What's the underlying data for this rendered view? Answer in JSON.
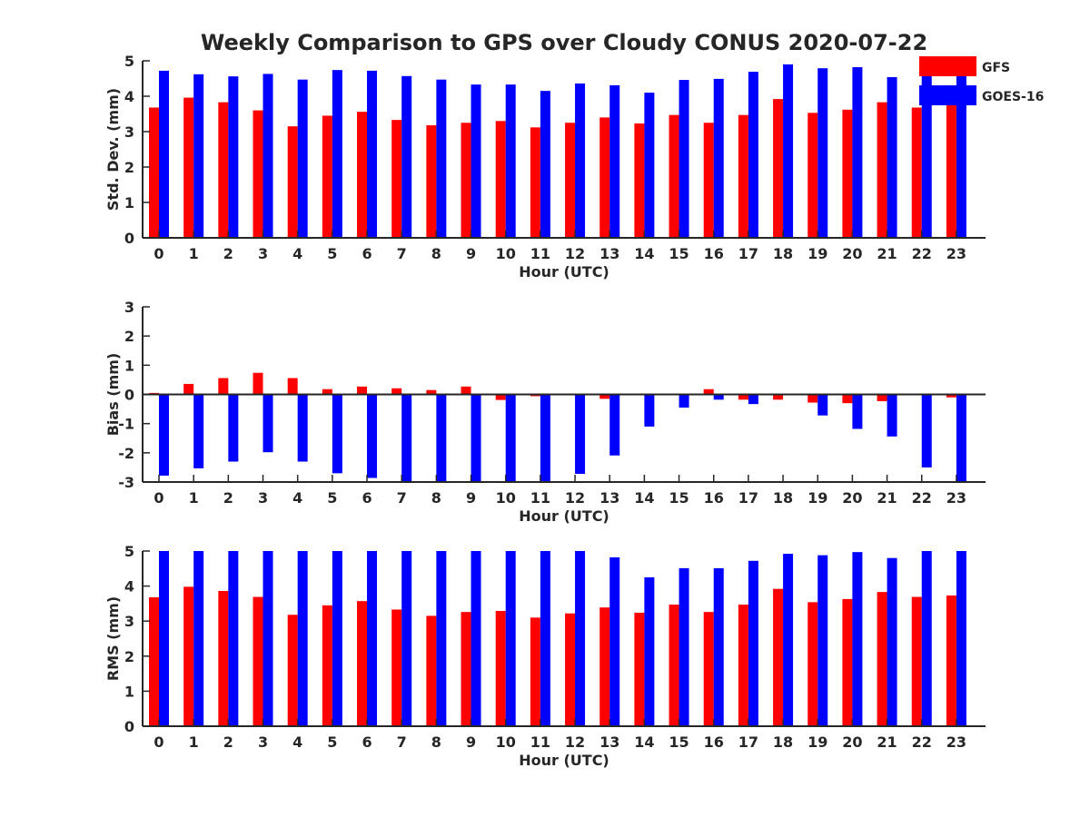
{
  "title": "Weekly Comparison to GPS over Cloudy CONUS 2020-07-22",
  "legend": {
    "placement": "top-right",
    "items": [
      {
        "label": "GFS",
        "color": "#ff0000"
      },
      {
        "label": "GOES-16",
        "color": "#0000ff"
      }
    ]
  },
  "colors": {
    "gfs": "#ff0000",
    "goes": "#0000ff",
    "axis": "#262626"
  },
  "chart_data": [
    {
      "type": "bar",
      "xlabel": "Hour (UTC)",
      "ylabel": "Std. Dev. (mm)",
      "ylim": [
        0,
        5
      ],
      "yticks": [
        0,
        1,
        2,
        3,
        4,
        5
      ],
      "categories": [
        "0",
        "1",
        "2",
        "3",
        "4",
        "5",
        "6",
        "7",
        "8",
        "9",
        "10",
        "11",
        "12",
        "13",
        "14",
        "15",
        "16",
        "17",
        "18",
        "19",
        "20",
        "21",
        "22",
        "23"
      ],
      "series": [
        {
          "name": "GFS",
          "values": [
            3.68,
            3.96,
            3.83,
            3.6,
            3.15,
            3.45,
            3.56,
            3.33,
            3.18,
            3.25,
            3.3,
            3.12,
            3.25,
            3.4,
            3.23,
            3.47,
            3.25,
            3.47,
            3.92,
            3.53,
            3.62,
            3.83,
            3.68,
            3.85
          ]
        },
        {
          "name": "GOES-16",
          "values": [
            4.72,
            4.62,
            4.56,
            4.63,
            4.47,
            4.74,
            4.72,
            4.57,
            4.47,
            4.33,
            4.33,
            4.15,
            4.36,
            4.31,
            4.1,
            4.46,
            4.49,
            4.69,
            4.9,
            4.79,
            4.82,
            4.54,
            4.72,
            4.7
          ]
        }
      ]
    },
    {
      "type": "bar",
      "xlabel": "Hour (UTC)",
      "ylabel": "Bias (mm)",
      "ylim": [
        -3,
        3
      ],
      "yticks": [
        -3,
        -2,
        -1,
        0,
        1,
        2,
        3
      ],
      "zero_line": true,
      "categories": [
        "0",
        "1",
        "2",
        "3",
        "4",
        "5",
        "6",
        "7",
        "8",
        "9",
        "10",
        "11",
        "12",
        "13",
        "14",
        "15",
        "16",
        "17",
        "18",
        "19",
        "20",
        "21",
        "22",
        "23"
      ],
      "series": [
        {
          "name": "GFS",
          "values": [
            0.05,
            0.36,
            0.56,
            0.74,
            0.56,
            0.18,
            0.27,
            0.21,
            0.15,
            0.27,
            -0.19,
            -0.06,
            -0.03,
            -0.15,
            0.0,
            0.0,
            0.18,
            -0.18,
            -0.18,
            -0.28,
            -0.3,
            -0.23,
            0.0,
            -0.1
          ]
        },
        {
          "name": "GOES-16",
          "values": [
            -2.78,
            -2.53,
            -2.3,
            -1.98,
            -2.3,
            -2.7,
            -2.86,
            -3.0,
            -3.0,
            -3.0,
            -3.0,
            -3.0,
            -2.72,
            -2.09,
            -1.1,
            -0.45,
            -0.18,
            -0.33,
            0.0,
            -0.72,
            -1.18,
            -1.44,
            -2.5,
            -3.0
          ]
        }
      ]
    },
    {
      "type": "bar",
      "xlabel": "Hour (UTC)",
      "ylabel": "RMS (mm)",
      "ylim": [
        0,
        5
      ],
      "yticks": [
        0,
        1,
        2,
        3,
        4,
        5
      ],
      "categories": [
        "0",
        "1",
        "2",
        "3",
        "4",
        "5",
        "6",
        "7",
        "8",
        "9",
        "10",
        "11",
        "12",
        "13",
        "14",
        "15",
        "16",
        "17",
        "18",
        "19",
        "20",
        "21",
        "22",
        "23"
      ],
      "series": [
        {
          "name": "GFS",
          "values": [
            3.68,
            3.98,
            3.86,
            3.69,
            3.18,
            3.45,
            3.57,
            3.33,
            3.15,
            3.26,
            3.29,
            3.1,
            3.22,
            3.39,
            3.24,
            3.47,
            3.26,
            3.47,
            3.92,
            3.54,
            3.63,
            3.83,
            3.69,
            3.73
          ]
        },
        {
          "name": "GOES-16",
          "values": [
            5.0,
            5.0,
            5.0,
            5.0,
            5.0,
            5.0,
            5.0,
            5.0,
            5.0,
            5.0,
            5.0,
            5.0,
            5.0,
            4.82,
            4.25,
            4.51,
            4.51,
            4.72,
            4.92,
            4.88,
            4.97,
            4.8,
            5.0,
            5.0
          ]
        }
      ]
    }
  ]
}
